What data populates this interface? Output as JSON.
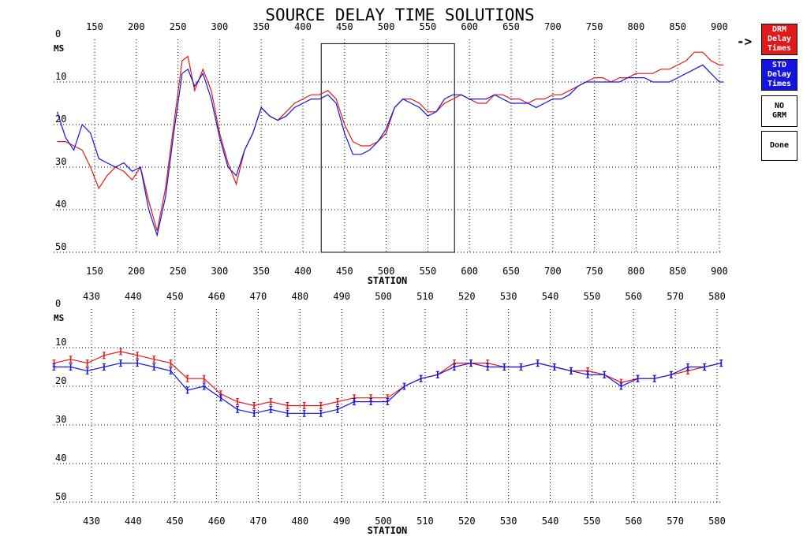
{
  "title": "SOURCE DELAY TIME SOLUTIONS",
  "buttons": {
    "drm": "DRM\nDelay\nTimes",
    "std": "STD\nDelay\nTimes",
    "nogrm": "NO\nGRM",
    "done": "Done",
    "selected_marker": "->"
  },
  "colors": {
    "drm": "#e01a1a",
    "std": "#1414e0",
    "grid": "#000000"
  },
  "chart_data": [
    {
      "type": "line",
      "xlabel": "STATION",
      "ylabel": "MS",
      "xlim": [
        105,
        905
      ],
      "ylim": [
        0,
        50
      ],
      "y_inverted": true,
      "xticks": [
        150,
        200,
        250,
        300,
        350,
        400,
        450,
        500,
        550,
        600,
        650,
        700,
        750,
        800,
        850,
        900
      ],
      "yticks": [
        0,
        10,
        20,
        30,
        40,
        50
      ],
      "grid": "dotted",
      "selection_box": {
        "x_range": [
          422,
          582
        ],
        "y_range": [
          1,
          50
        ]
      },
      "series": [
        {
          "name": "DRM",
          "x": [
            105,
            115,
            125,
            135,
            145,
            155,
            165,
            175,
            185,
            195,
            205,
            215,
            225,
            235,
            245,
            255,
            262,
            270,
            280,
            290,
            300,
            310,
            320,
            330,
            340,
            350,
            360,
            370,
            380,
            390,
            400,
            410,
            420,
            430,
            440,
            450,
            460,
            470,
            480,
            490,
            500,
            510,
            520,
            530,
            540,
            550,
            560,
            570,
            580,
            590,
            600,
            610,
            620,
            630,
            640,
            650,
            660,
            670,
            680,
            690,
            700,
            710,
            720,
            730,
            740,
            750,
            760,
            770,
            780,
            790,
            800,
            810,
            820,
            830,
            840,
            850,
            860,
            870,
            880,
            890,
            900,
            905
          ],
          "values": [
            24,
            24,
            25,
            26,
            30,
            35,
            32,
            30,
            31,
            33,
            30,
            38,
            45,
            35,
            20,
            5,
            4,
            12,
            7,
            12,
            22,
            29,
            34,
            26,
            22,
            16,
            18,
            19,
            17,
            15,
            14,
            13,
            13,
            12,
            14,
            20,
            24,
            25,
            25,
            24,
            22,
            16,
            14,
            14,
            15,
            17,
            17,
            15,
            14,
            13,
            14,
            15,
            15,
            13,
            13,
            14,
            14,
            15,
            14,
            14,
            13,
            13,
            12,
            11,
            10,
            9,
            9,
            10,
            9,
            9,
            8,
            8,
            8,
            7,
            7,
            6,
            5,
            3,
            3,
            5,
            6,
            6
          ]
        },
        {
          "name": "STD",
          "x": [
            105,
            115,
            125,
            135,
            145,
            155,
            165,
            175,
            185,
            195,
            205,
            215,
            225,
            235,
            245,
            255,
            262,
            270,
            280,
            290,
            300,
            310,
            320,
            330,
            340,
            350,
            360,
            370,
            380,
            390,
            400,
            410,
            420,
            430,
            440,
            450,
            460,
            470,
            480,
            490,
            500,
            510,
            520,
            530,
            540,
            550,
            560,
            570,
            580,
            590,
            600,
            610,
            620,
            630,
            640,
            650,
            660,
            670,
            680,
            690,
            700,
            710,
            720,
            730,
            740,
            750,
            760,
            770,
            780,
            790,
            800,
            810,
            820,
            830,
            840,
            850,
            860,
            870,
            880,
            890,
            900,
            905
          ],
          "values": [
            17,
            23,
            26,
            20,
            22,
            28,
            29,
            30,
            29,
            31,
            30,
            40,
            46,
            37,
            22,
            8,
            7,
            11,
            8,
            14,
            23,
            30,
            32,
            26,
            22,
            16,
            18,
            19,
            18,
            16,
            15,
            14,
            14,
            13,
            15,
            22,
            27,
            27,
            26,
            24,
            21,
            16,
            14,
            15,
            16,
            18,
            17,
            14,
            13,
            13,
            14,
            14,
            14,
            13,
            14,
            15,
            15,
            15,
            16,
            15,
            14,
            14,
            13,
            11,
            10,
            10,
            10,
            10,
            10,
            9,
            9,
            9,
            10,
            10,
            10,
            9,
            8,
            7,
            6,
            8,
            10,
            10
          ]
        }
      ]
    },
    {
      "type": "line",
      "xlabel": "STATION",
      "ylabel": "MS",
      "xlim": [
        421,
        582
      ],
      "ylim": [
        0,
        50
      ],
      "y_inverted": true,
      "xticks": [
        430,
        440,
        450,
        460,
        470,
        480,
        490,
        500,
        510,
        520,
        530,
        540,
        550,
        560,
        570,
        580
      ],
      "yticks": [
        0,
        10,
        20,
        30,
        40,
        50
      ],
      "grid": "dotted",
      "error_bars": true,
      "series": [
        {
          "name": "DRM",
          "x": [
            421,
            425,
            429,
            433,
            437,
            441,
            445,
            449,
            453,
            457,
            461,
            465,
            469,
            473,
            477,
            481,
            485,
            489,
            493,
            497,
            501,
            505,
            509,
            513,
            517,
            521,
            525,
            529,
            533,
            537,
            541,
            545,
            549,
            553,
            557,
            561,
            565,
            569,
            573,
            577,
            581
          ],
          "values": [
            14,
            13,
            14,
            12,
            11,
            12,
            13,
            14,
            18,
            18,
            22,
            24,
            25,
            24,
            25,
            25,
            25,
            24,
            23,
            23,
            23,
            20,
            18,
            17,
            14,
            14,
            14,
            15,
            15,
            14,
            15,
            16,
            16,
            17,
            19,
            18,
            18,
            17,
            16,
            15,
            14
          ]
        },
        {
          "name": "STD",
          "x": [
            421,
            425,
            429,
            433,
            437,
            441,
            445,
            449,
            453,
            457,
            461,
            465,
            469,
            473,
            477,
            481,
            485,
            489,
            493,
            497,
            501,
            505,
            509,
            513,
            517,
            521,
            525,
            529,
            533,
            537,
            541,
            545,
            549,
            553,
            557,
            561,
            565,
            569,
            573,
            577,
            581
          ],
          "values": [
            15,
            15,
            16,
            15,
            14,
            14,
            15,
            16,
            21,
            20,
            23,
            26,
            27,
            26,
            27,
            27,
            27,
            26,
            24,
            24,
            24,
            20,
            18,
            17,
            15,
            14,
            15,
            15,
            15,
            14,
            15,
            16,
            17,
            17,
            20,
            18,
            18,
            17,
            15,
            15,
            14
          ]
        }
      ]
    }
  ]
}
